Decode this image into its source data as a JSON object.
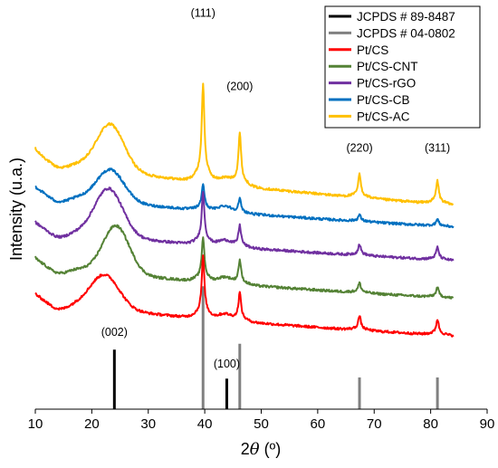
{
  "chart_data": {
    "type": "line",
    "title": "",
    "xlabel_prefix": "2",
    "xlabel_symbol": "θ",
    "xlabel_suffix": " (º)",
    "ylabel": "Intensity (u.a.)",
    "xlim": [
      10,
      90
    ],
    "xticks": [
      10,
      20,
      30,
      40,
      50,
      60,
      70,
      80,
      90
    ],
    "y_tick_labels": false,
    "grid": false,
    "legend_position": "top-right",
    "series": [
      {
        "name": "Pt/CS-AC",
        "color": "#FFC000",
        "x_range": [
          10,
          84
        ],
        "baseline": 0.66,
        "tail": 0.515,
        "hump": {
          "center": 23.3,
          "amp": 0.115,
          "width": 3.4
        },
        "peaks": [
          {
            "x": 39.7,
            "h": 0.22
          },
          {
            "x": 46.2,
            "h": 0.12
          },
          {
            "x": 67.4,
            "h": 0.052
          },
          {
            "x": 81.2,
            "h": 0.052
          }
        ]
      },
      {
        "name": "Pt/CS-CB",
        "color": "#0070C0",
        "x_range": [
          10,
          84
        ],
        "baseline": 0.565,
        "tail": 0.46,
        "hump": {
          "center": 23.3,
          "amp": 0.08,
          "width": 3.4
        },
        "peaks": [
          {
            "x": 39.7,
            "h": 0.06
          },
          {
            "x": 46.2,
            "h": 0.032
          },
          {
            "x": 67.4,
            "h": 0.015
          },
          {
            "x": 81.2,
            "h": 0.015
          }
        ]
      },
      {
        "name": "Pt/CS-rGO",
        "color": "#7030A0",
        "x_range": [
          10,
          84
        ],
        "baseline": 0.475,
        "tail": 0.375,
        "hump": {
          "center": 23.0,
          "amp": 0.12,
          "width": 3.5
        },
        "peaks": [
          {
            "x": 39.7,
            "h": 0.12
          },
          {
            "x": 46.2,
            "h": 0.05
          },
          {
            "x": 67.4,
            "h": 0.025
          },
          {
            "x": 81.2,
            "h": 0.028
          }
        ]
      },
      {
        "name": "Pt/CS-CNT",
        "color": "#548235",
        "x_range": [
          10,
          84
        ],
        "baseline": 0.385,
        "tail": 0.28,
        "hump": {
          "center": 24.3,
          "amp": 0.12,
          "width": 3.3
        },
        "peaks": [
          {
            "x": 39.7,
            "h": 0.1
          },
          {
            "x": 46.2,
            "h": 0.055
          },
          {
            "x": 67.4,
            "h": 0.022
          },
          {
            "x": 81.2,
            "h": 0.022
          }
        ]
      },
      {
        "name": "Pt/CS",
        "color": "#FF0000",
        "x_range": [
          10,
          84
        ],
        "baseline": 0.295,
        "tail": 0.185,
        "hump": {
          "center": 22.3,
          "amp": 0.085,
          "width": 3.6
        },
        "peaks": [
          {
            "x": 39.7,
            "h": 0.14
          },
          {
            "x": 46.2,
            "h": 0.065
          },
          {
            "x": 67.4,
            "h": 0.032
          },
          {
            "x": 81.2,
            "h": 0.035
          }
        ]
      }
    ],
    "reference_patterns": [
      {
        "name": "JCPDS # 89-8487",
        "color": "#000000",
        "lines": [
          {
            "x": 24.0,
            "h": 0.15
          },
          {
            "x": 43.9,
            "h": 0.077
          }
        ]
      },
      {
        "name": "JCPDS # 04-0802",
        "color": "#808080",
        "lines": [
          {
            "x": 39.7,
            "h": 0.31
          },
          {
            "x": 46.2,
            "h": 0.165
          },
          {
            "x": 67.4,
            "h": 0.08
          },
          {
            "x": 81.2,
            "h": 0.08
          }
        ]
      }
    ],
    "annotations": [
      {
        "text": "(111)",
        "x": 39.7,
        "y": 0.99
      },
      {
        "text": "(200)",
        "x": 46.2,
        "y": 0.805
      },
      {
        "text": "(220)",
        "x": 67.4,
        "y": 0.65
      },
      {
        "text": "(311)",
        "x": 81.2,
        "y": 0.65
      },
      {
        "text": "(002)",
        "x": 24.0,
        "y": 0.185
      },
      {
        "text": "(100)",
        "x": 43.9,
        "y": 0.105
      }
    ],
    "legend_order": [
      "JCPDS # 89-8487",
      "JCPDS # 04-0802",
      "Pt/CS",
      "Pt/CS-CNT",
      "Pt/CS-rGO",
      "Pt/CS-CB",
      "Pt/CS-AC"
    ]
  }
}
